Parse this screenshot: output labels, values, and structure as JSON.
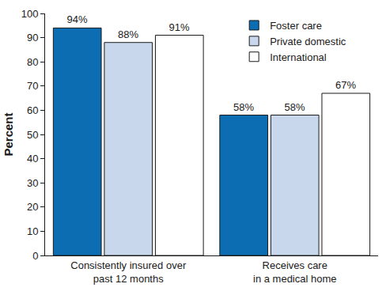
{
  "chart_data": {
    "type": "bar",
    "y_label": "Percent",
    "categories": [
      "Consistently insured over\npast 12 months",
      "Receives care\nin a medical home"
    ],
    "series": [
      {
        "name": "Foster care",
        "color": "#0d6db3",
        "values": [
          94,
          58
        ],
        "value_labels": [
          "94%",
          "58%"
        ]
      },
      {
        "name": "Private domestic",
        "color": "#c8d7ec",
        "values": [
          88,
          58
        ],
        "value_labels": [
          "88%",
          "58%"
        ]
      },
      {
        "name": "International",
        "color": "#ffffff",
        "values": [
          91,
          67
        ],
        "value_labels": [
          "91%",
          "67%"
        ]
      }
    ],
    "ylim": [
      0,
      100
    ],
    "yticks": [
      0,
      10,
      20,
      30,
      40,
      50,
      60,
      70,
      80,
      90,
      100
    ],
    "grid": false,
    "legend": "top right",
    "data_labels": true
  }
}
